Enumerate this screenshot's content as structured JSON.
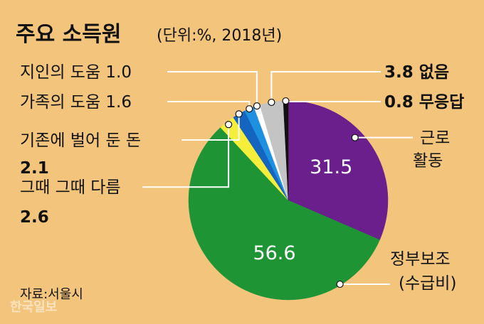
{
  "chart_data": {
    "type": "pie",
    "title": "주요 소득원",
    "subtitle": "(단위:%, 2018년)",
    "source": "자료:서울시",
    "slices": [
      {
        "label": "근로 활동",
        "label_lines": [
          "근로",
          "활동"
        ],
        "value_text": "31.5",
        "value": 31.5,
        "color": "#6a1f8d"
      },
      {
        "label": "정부보조(수급비)",
        "label_lines": [
          "정부보조",
          "(수급비)"
        ],
        "value_text": "56.6",
        "value": 56.6,
        "color": "#1f9435"
      },
      {
        "label": "그때 그때 다름",
        "label_lines": [
          "그때 그때 다름",
          "2.6"
        ],
        "value_text": "2.6",
        "value": 2.6,
        "color": "#f5ee3a"
      },
      {
        "label": "기존에 벌어 둔 돈",
        "label_lines": [
          "기존에 벌어 둔 돈",
          "2.1"
        ],
        "value_text": "2.1",
        "value": 2.1,
        "color": "#1565c0"
      },
      {
        "label": "가족의 도움",
        "label_lines": [
          "가족의 도움 1.6"
        ],
        "value_text": "1.6",
        "value": 1.6,
        "color": "#1e90e0"
      },
      {
        "label": "지인의 도움",
        "label_lines": [
          "지인의 도움 1.0"
        ],
        "value_text": "1.0",
        "value": 1.0,
        "color": "#ffffff"
      },
      {
        "label": "없음",
        "label_lines": [
          "3.8 없음"
        ],
        "value_text": "3.8",
        "value": 3.8,
        "color": "#c4c4c4"
      },
      {
        "label": "무응답",
        "label_lines": [
          "0.8 무응답"
        ],
        "value_text": "0.8",
        "value": 0.8,
        "color": "#111111"
      }
    ]
  },
  "watermark": "한국일보"
}
